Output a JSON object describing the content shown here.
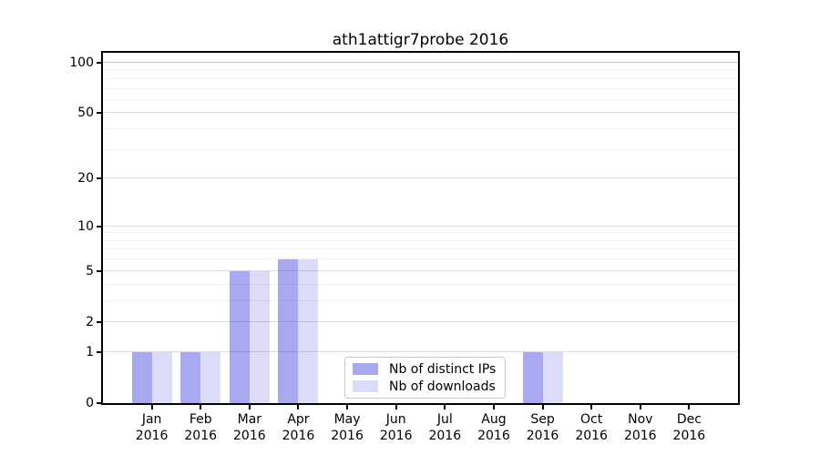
{
  "chart_data": {
    "type": "bar",
    "title": "ath1attigr7probe 2016",
    "categories": [
      "Jan",
      "Feb",
      "Mar",
      "Apr",
      "May",
      "Jun",
      "Jul",
      "Aug",
      "Sep",
      "Oct",
      "Nov",
      "Dec"
    ],
    "year": "2016",
    "series": [
      {
        "name": "Nb of distinct IPs",
        "color": "#a9a9f2",
        "values": [
          1,
          1,
          5,
          6,
          0,
          0,
          0,
          0,
          1,
          0,
          0,
          0
        ]
      },
      {
        "name": "Nb of downloads",
        "color": "#dcdcf9",
        "values": [
          1,
          1,
          5,
          6,
          0,
          0,
          0,
          0,
          1,
          0,
          0,
          0
        ]
      }
    ],
    "xlabel": "",
    "ylabel": "",
    "yscale": "log10(1+x)",
    "yticks": [
      0,
      1,
      2,
      5,
      10,
      20,
      50,
      100
    ],
    "yticks_minor": [
      3,
      4,
      6,
      7,
      8,
      9,
      30,
      40,
      60,
      70,
      80,
      90
    ],
    "ylim": [
      0,
      114.6
    ],
    "grid": "horizontal",
    "legend_position": "lower center",
    "colors": {
      "axis": "#000000",
      "grid_major": "rgba(0,0,0,0.13)",
      "grid_minor": "rgba(0,0,0,0.06)",
      "grid_top": "rgba(0,0,0,0.22)",
      "background": "#ffffff"
    }
  }
}
